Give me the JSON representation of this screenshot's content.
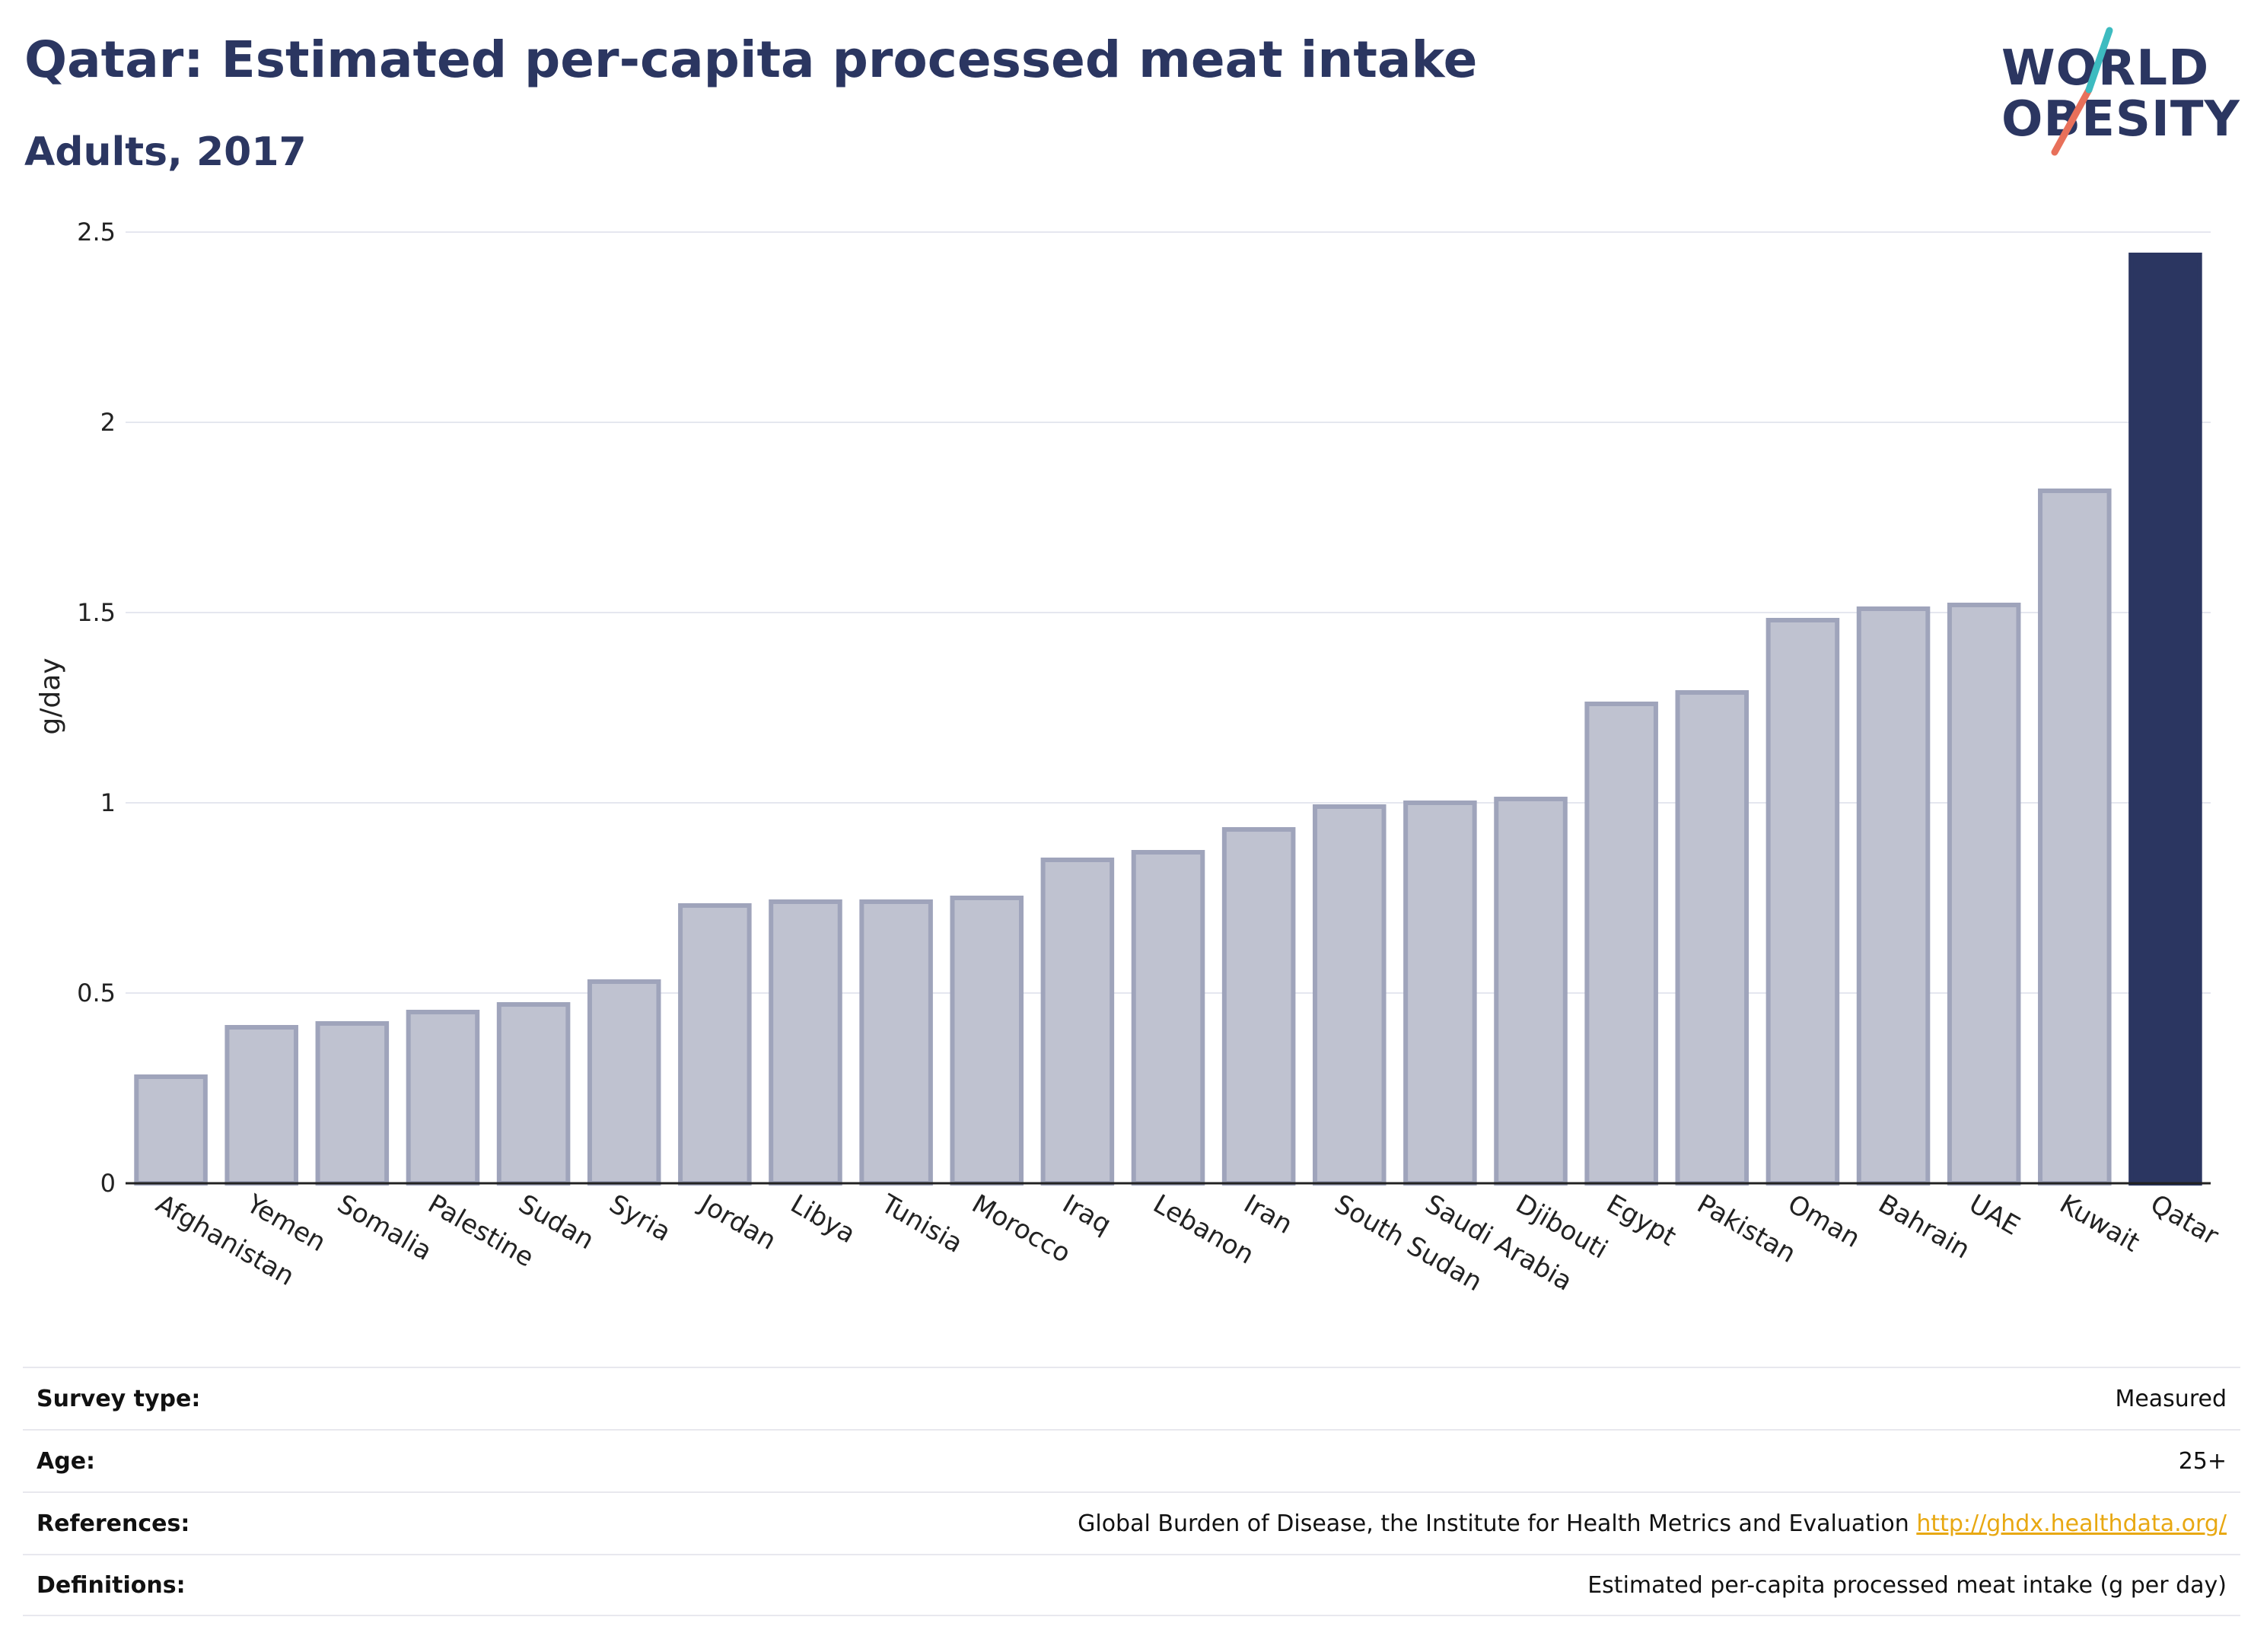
{
  "header": {
    "title": "Qatar: Estimated per-capita processed meat intake",
    "subtitle": "Adults, 2017"
  },
  "logo": {
    "line1": "WORLD",
    "line2": "OBESITY",
    "colors": {
      "text": "#2b3661",
      "slash_teal": "#3dbbc0",
      "slash_coral": "#e8705a"
    }
  },
  "colors": {
    "highlight_bar": "#2b3661",
    "other_bar_fill": "#bfc2d0",
    "other_bar_stroke": "#9fa4bb",
    "gridline": "#e5e7ef",
    "baseline": "#222222"
  },
  "chart_data": {
    "type": "bar",
    "title": "Qatar: Estimated per-capita processed meat intake",
    "subtitle": "Adults, 2017",
    "xlabel": "",
    "ylabel": "g/day",
    "ylim": [
      0,
      2.5
    ],
    "yticks": [
      0,
      0.5,
      1,
      1.5,
      2,
      2.5
    ],
    "ytick_labels": [
      "0",
      "0.5",
      "1",
      "1.5",
      "2",
      "2.5"
    ],
    "grid": true,
    "highlight": "Qatar",
    "categories": [
      "Afghanistan",
      "Yemen",
      "Somalia",
      "Palestine",
      "Sudan",
      "Syria",
      "Jordan",
      "Libya",
      "Tunisia",
      "Morocco",
      "Iraq",
      "Lebanon",
      "Iran",
      "South Sudan",
      "Saudi Arabia",
      "Djibouti",
      "Egypt",
      "Pakistan",
      "Oman",
      "Bahrain",
      "UAE",
      "Kuwait",
      "Qatar"
    ],
    "values": [
      0.28,
      0.41,
      0.42,
      0.45,
      0.47,
      0.53,
      0.73,
      0.74,
      0.74,
      0.75,
      0.85,
      0.87,
      0.93,
      0.99,
      1.0,
      1.01,
      1.26,
      1.29,
      1.48,
      1.51,
      1.52,
      1.82,
      2.44
    ]
  },
  "metadata": [
    {
      "label": "Survey type:",
      "value": "Measured"
    },
    {
      "label": "Age:",
      "value": "25+"
    },
    {
      "label": "References:",
      "value": "Global Burden of Disease, the Institute for Health Metrics and Evaluation",
      "link": "http://ghdx.healthdata.org/"
    },
    {
      "label": "Definitions:",
      "value": "Estimated per-capita processed meat intake (g per day)"
    }
  ]
}
